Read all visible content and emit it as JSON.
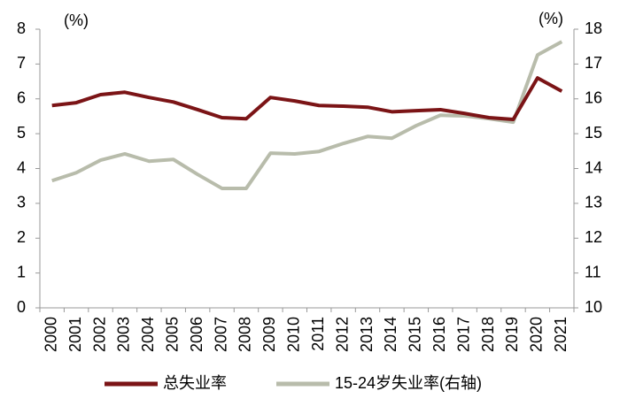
{
  "chart_data": {
    "type": "line",
    "y_unit_label": "(%)",
    "y2_unit_label": "(%)",
    "categories": [
      "2000",
      "2001",
      "2002",
      "2003",
      "2004",
      "2005",
      "2006",
      "2007",
      "2008",
      "2009",
      "2010",
      "2011",
      "2012",
      "2013",
      "2014",
      "2015",
      "2016",
      "2017",
      "2018",
      "2019",
      "2020",
      "2021"
    ],
    "series": [
      {
        "name": "总失业率",
        "color": "#7b1416",
        "values": [
          5.81,
          5.89,
          6.12,
          6.19,
          6.04,
          5.91,
          5.69,
          5.46,
          5.43,
          6.04,
          5.94,
          5.81,
          5.79,
          5.76,
          5.63,
          5.66,
          5.69,
          5.58,
          5.46,
          5.41,
          6.6,
          6.22
        ]
      },
      {
        "name": "15-24岁失业率(右轴)",
        "color": "#b8bcab",
        "axis": "y2",
        "values": [
          13.65,
          13.88,
          14.24,
          14.42,
          14.21,
          14.26,
          13.83,
          13.43,
          13.43,
          14.44,
          14.42,
          14.49,
          14.72,
          14.92,
          14.87,
          15.23,
          15.53,
          15.51,
          15.43,
          15.33,
          17.26,
          17.64
        ]
      }
    ],
    "ylim": [
      0,
      8
    ],
    "yticks": [
      0,
      1,
      2,
      3,
      4,
      5,
      6,
      7,
      8
    ],
    "y2lim": [
      10,
      18
    ],
    "y2ticks": [
      10,
      11,
      12,
      13,
      14,
      15,
      16,
      17,
      18
    ]
  }
}
